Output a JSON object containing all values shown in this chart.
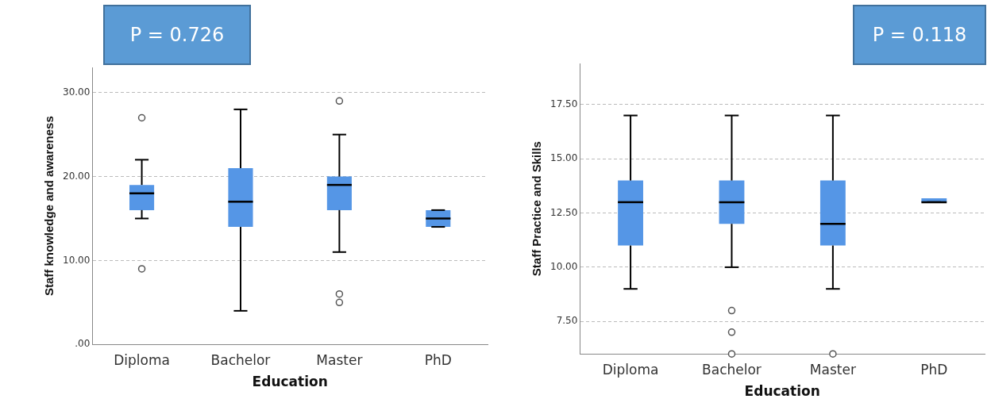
{
  "chart_data": [
    {
      "type": "box",
      "categories": [
        "Diploma",
        "Bachelor",
        "Master",
        "PhD"
      ],
      "xlabel": "Education",
      "ylabel": "Staff knowledge and awareness",
      "color": "#5596e6",
      "ylim": [
        0,
        33
      ],
      "yticks": [
        {
          "value": 0,
          "label": ".00"
        },
        {
          "value": 10,
          "label": "10.00"
        },
        {
          "value": 20,
          "label": "20.00"
        },
        {
          "value": 30,
          "label": "30.00"
        }
      ],
      "grid": "y",
      "legend": false,
      "annotations": [
        "P = 0.726"
      ],
      "boxes": [
        {
          "low": 15,
          "q1": 16,
          "median": 18,
          "q3": 19,
          "high": 22,
          "outliers": [
            27,
            9
          ]
        },
        {
          "low": 4,
          "q1": 14,
          "median": 17,
          "q3": 21,
          "high": 28
        },
        {
          "low": 11,
          "q1": 16,
          "median": 19,
          "q3": 20,
          "high": 25,
          "outliers": [
            29,
            6,
            5
          ]
        },
        {
          "low": 14,
          "q1": 14,
          "median": 15,
          "q3": 16,
          "high": 16
        }
      ]
    },
    {
      "type": "box",
      "categories": [
        "Diploma",
        "Bachelor",
        "Master",
        "PhD"
      ],
      "xlabel": "Education",
      "ylabel": "Staff Practice and Skills",
      "color": "#5596e6",
      "ylim": [
        6,
        19.4
      ],
      "yticks": [
        {
          "value": 7.5,
          "label": "7.50"
        },
        {
          "value": 10,
          "label": "10.00"
        },
        {
          "value": 12.5,
          "label": "12.50"
        },
        {
          "value": 15,
          "label": "15.00"
        },
        {
          "value": 17.5,
          "label": "17.50"
        }
      ],
      "grid": "y",
      "legend": false,
      "annotations": [
        "P = 0.118"
      ],
      "boxes": [
        {
          "low": 9,
          "q1": 11,
          "median": 13,
          "q3": 14,
          "high": 17
        },
        {
          "low": 10,
          "q1": 12,
          "median": 13,
          "q3": 14,
          "high": 17,
          "outliers": [
            8,
            7,
            6
          ]
        },
        {
          "low": 9,
          "q1": 11,
          "median": 12,
          "q3": 14,
          "high": 17,
          "outliers": [
            6
          ]
        },
        {
          "low": 13,
          "q1": 13,
          "median": 13,
          "q3": 13,
          "high": 13
        }
      ]
    }
  ]
}
